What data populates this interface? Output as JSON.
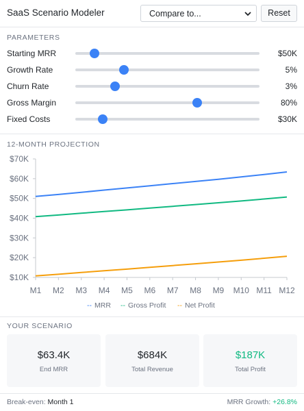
{
  "header": {
    "title": "SaaS Scenario Modeler",
    "compare_value": "Compare to...",
    "reset_label": "Reset"
  },
  "parameters": {
    "section_label": "PARAMETERS",
    "items": [
      {
        "label": "Starting MRR",
        "value": "$50K",
        "level": 0.105
      },
      {
        "label": "Growth Rate",
        "value": "5%",
        "level": 0.265
      },
      {
        "label": "Churn Rate",
        "value": "3%",
        "level": 0.215
      },
      {
        "label": "Gross Margin",
        "value": "80%",
        "level": 0.66
      },
      {
        "label": "Fixed Costs",
        "value": "$30K",
        "level": 0.15
      }
    ]
  },
  "projection": {
    "section_label": "12-MONTH PROJECTION"
  },
  "chart_data": {
    "type": "line",
    "x": [
      "M1",
      "M2",
      "M3",
      "M4",
      "M5",
      "M6",
      "M7",
      "M8",
      "M9",
      "M10",
      "M11",
      "M12"
    ],
    "ylim": [
      10000,
      70000
    ],
    "yticks": [
      "$10K",
      "$20K",
      "$30K",
      "$40K",
      "$50K",
      "$60K",
      "$70K"
    ],
    "grid": false,
    "legend_position": "bottom",
    "series": [
      {
        "name": "MRR",
        "color": "#3b82f6",
        "values": [
          51000,
          52000,
          53100,
          54200,
          55300,
          56400,
          57500,
          58600,
          59700,
          60900,
          62100,
          63400
        ]
      },
      {
        "name": "Gross Profit",
        "color": "#10b981",
        "values": [
          40800,
          41600,
          42500,
          43400,
          44200,
          45100,
          46000,
          46900,
          47800,
          48700,
          49700,
          50700
        ]
      },
      {
        "name": "Net Profit",
        "color": "#f59e0b",
        "values": [
          10800,
          11600,
          12500,
          13400,
          14200,
          15100,
          16000,
          16900,
          17800,
          18700,
          19700,
          20700
        ]
      }
    ]
  },
  "scenario": {
    "section_label": "YOUR SCENARIO",
    "cards": [
      {
        "value": "$63.4K",
        "label": "End MRR",
        "color": "#1f2328"
      },
      {
        "value": "$684K",
        "label": "Total Revenue",
        "color": "#1f2328"
      },
      {
        "value": "$187K",
        "label": "Total Profit",
        "color": "#10b981"
      }
    ]
  },
  "footer": {
    "breakeven_label": "Break-even:",
    "breakeven_value": "Month 1",
    "growth_label": "MRR Growth:",
    "growth_value": "+26.8%",
    "growth_color": "#10b981"
  }
}
